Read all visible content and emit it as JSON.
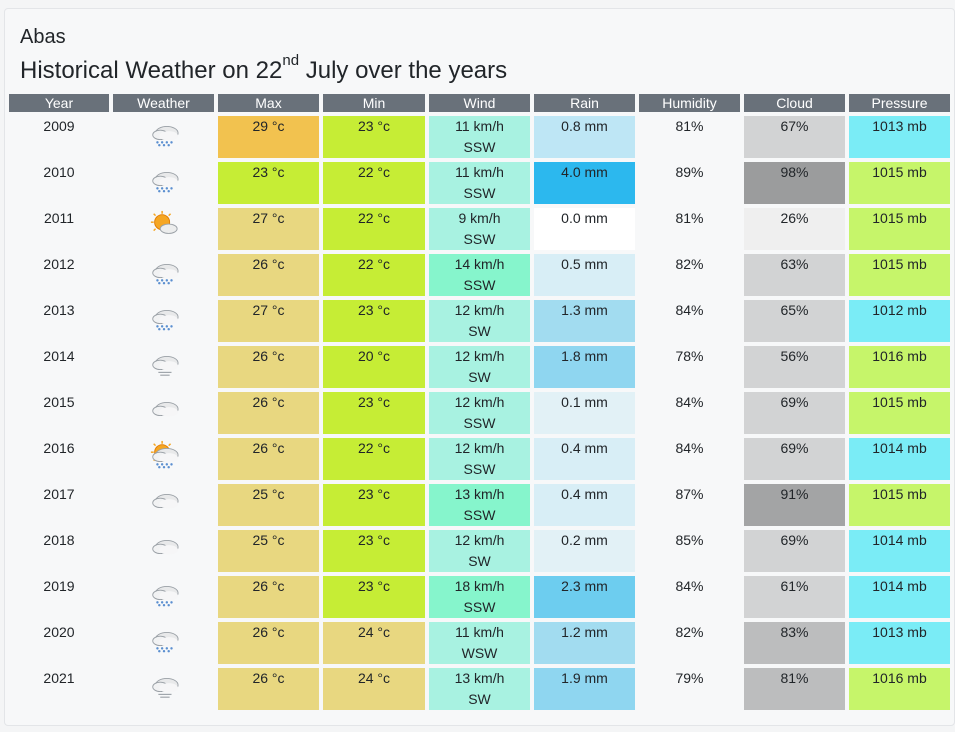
{
  "location": "Abas",
  "title": {
    "prefix": "Historical Weather on 22",
    "suffix": "nd",
    "rest": " July over the years"
  },
  "headers": [
    "Year",
    "Weather",
    "Max",
    "Min",
    "Wind",
    "Rain",
    "Humidity",
    "Cloud",
    "Pressure"
  ],
  "rows": [
    {
      "year": "2009",
      "icon": "rain-cloud-icon",
      "max": "29 °c",
      "max_color": "#f2c24f",
      "min": "23 °c",
      "min_color": "#c6ed35",
      "wind": "11 km/h",
      "wind_dir": "SSW",
      "wind_color": "#a8f2e1",
      "rain": "0.8 mm",
      "rain_color": "#bee6f5",
      "humidity": "81%",
      "cloud": "67%",
      "cloud_color": "#d2d3d4",
      "pressure": "1013 mb",
      "pressure_color": "#7aecf6"
    },
    {
      "year": "2010",
      "icon": "rain-cloud-icon",
      "max": "23 °c",
      "max_color": "#c6ed35",
      "min": "22 °c",
      "min_color": "#c6ed35",
      "wind": "11 km/h",
      "wind_dir": "SSW",
      "wind_color": "#a8f2e1",
      "rain": "4.0 mm",
      "rain_color": "#2cb8ee",
      "humidity": "89%",
      "cloud": "98%",
      "cloud_color": "#9b9c9d",
      "pressure": "1015 mb",
      "pressure_color": "#c6f56a"
    },
    {
      "year": "2011",
      "icon": "sun-cloud-icon",
      "max": "27 °c",
      "max_color": "#e8d780",
      "min": "22 °c",
      "min_color": "#c6ed35",
      "wind": "9 km/h",
      "wind_dir": "SSW",
      "wind_color": "#a8f2e1",
      "rain": "0.0 mm",
      "rain_color": "#ffffff",
      "humidity": "81%",
      "cloud": "26%",
      "cloud_color": "#efefef",
      "pressure": "1015 mb",
      "pressure_color": "#c6f56a"
    },
    {
      "year": "2012",
      "icon": "rain-cloud-icon",
      "max": "26 °c",
      "max_color": "#e8d780",
      "min": "22 °c",
      "min_color": "#c6ed35",
      "wind": "14 km/h",
      "wind_dir": "SSW",
      "wind_color": "#86f5cc",
      "rain": "0.5 mm",
      "rain_color": "#d8eef6",
      "humidity": "82%",
      "cloud": "63%",
      "cloud_color": "#d2d3d4",
      "pressure": "1015 mb",
      "pressure_color": "#c6f56a"
    },
    {
      "year": "2013",
      "icon": "rain-cloud-icon",
      "max": "27 °c",
      "max_color": "#e8d780",
      "min": "23 °c",
      "min_color": "#c6ed35",
      "wind": "12 km/h",
      "wind_dir": "SW",
      "wind_color": "#a8f2e1",
      "rain": "1.3 mm",
      "rain_color": "#a2dcf0",
      "humidity": "84%",
      "cloud": "65%",
      "cloud_color": "#d2d3d4",
      "pressure": "1012 mb",
      "pressure_color": "#7aecf6"
    },
    {
      "year": "2014",
      "icon": "drizzle-cloud-icon",
      "max": "26 °c",
      "max_color": "#e8d780",
      "min": "20 °c",
      "min_color": "#c6ed35",
      "wind": "12 km/h",
      "wind_dir": "SW",
      "wind_color": "#a8f2e1",
      "rain": "1.8 mm",
      "rain_color": "#8fd6f0",
      "humidity": "78%",
      "cloud": "56%",
      "cloud_color": "#d2d3d4",
      "pressure": "1016 mb",
      "pressure_color": "#c6f56a"
    },
    {
      "year": "2015",
      "icon": "cloud-icon",
      "max": "26 °c",
      "max_color": "#e8d780",
      "min": "23 °c",
      "min_color": "#c6ed35",
      "wind": "12 km/h",
      "wind_dir": "SSW",
      "wind_color": "#a8f2e1",
      "rain": "0.1 mm",
      "rain_color": "#e2f1f6",
      "humidity": "84%",
      "cloud": "69%",
      "cloud_color": "#d2d3d4",
      "pressure": "1015 mb",
      "pressure_color": "#c6f56a"
    },
    {
      "year": "2016",
      "icon": "sun-rain-cloud-icon",
      "max": "26 °c",
      "max_color": "#e8d780",
      "min": "22 °c",
      "min_color": "#c6ed35",
      "wind": "12 km/h",
      "wind_dir": "SSW",
      "wind_color": "#a8f2e1",
      "rain": "0.4 mm",
      "rain_color": "#d8eef6",
      "humidity": "84%",
      "cloud": "69%",
      "cloud_color": "#d2d3d4",
      "pressure": "1014 mb",
      "pressure_color": "#7aecf6"
    },
    {
      "year": "2017",
      "icon": "cloud-icon",
      "max": "25 °c",
      "max_color": "#e8d780",
      "min": "23 °c",
      "min_color": "#c6ed35",
      "wind": "13 km/h",
      "wind_dir": "SSW",
      "wind_color": "#86f5cc",
      "rain": "0.4 mm",
      "rain_color": "#d8eef6",
      "humidity": "87%",
      "cloud": "91%",
      "cloud_color": "#a3a4a5",
      "pressure": "1015 mb",
      "pressure_color": "#c6f56a"
    },
    {
      "year": "2018",
      "icon": "cloud-icon",
      "max": "25 °c",
      "max_color": "#e8d780",
      "min": "23 °c",
      "min_color": "#c6ed35",
      "wind": "12 km/h",
      "wind_dir": "SW",
      "wind_color": "#a8f2e1",
      "rain": "0.2 mm",
      "rain_color": "#e2f1f6",
      "humidity": "85%",
      "cloud": "69%",
      "cloud_color": "#d2d3d4",
      "pressure": "1014 mb",
      "pressure_color": "#7aecf6"
    },
    {
      "year": "2019",
      "icon": "rain-cloud-icon",
      "max": "26 °c",
      "max_color": "#e8d780",
      "min": "23 °c",
      "min_color": "#c6ed35",
      "wind": "18 km/h",
      "wind_dir": "SSW",
      "wind_color": "#86f5cc",
      "rain": "2.3 mm",
      "rain_color": "#6dcdef",
      "humidity": "84%",
      "cloud": "61%",
      "cloud_color": "#d2d3d4",
      "pressure": "1014 mb",
      "pressure_color": "#7aecf6"
    },
    {
      "year": "2020",
      "icon": "rain-cloud-icon",
      "max": "26 °c",
      "max_color": "#e8d780",
      "min": "24 °c",
      "min_color": "#e8d780",
      "wind": "11 km/h",
      "wind_dir": "WSW",
      "wind_color": "#a8f2e1",
      "rain": "1.2 mm",
      "rain_color": "#a2dcf0",
      "humidity": "82%",
      "cloud": "83%",
      "cloud_color": "#bcbdbe",
      "pressure": "1013 mb",
      "pressure_color": "#7aecf6"
    },
    {
      "year": "2021",
      "icon": "drizzle-cloud-icon",
      "max": "26 °c",
      "max_color": "#e8d780",
      "min": "24 °c",
      "min_color": "#e8d780",
      "wind": "13 km/h",
      "wind_dir": "SW",
      "wind_color": "#a8f2e1",
      "rain": "1.9 mm",
      "rain_color": "#8fd6f0",
      "humidity": "79%",
      "cloud": "81%",
      "cloud_color": "#bcbdbe",
      "pressure": "1016 mb",
      "pressure_color": "#c6f56a"
    }
  ]
}
